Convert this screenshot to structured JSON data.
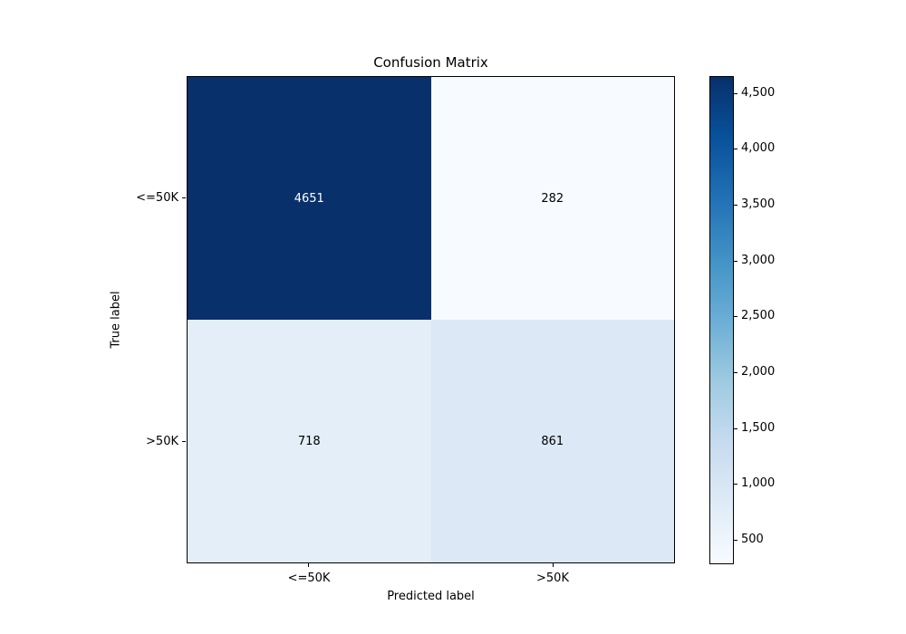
{
  "figure": {
    "title": "Confusion Matrix",
    "xlabel": "Predicted label",
    "ylabel": "True label"
  },
  "chart_data": {
    "type": "heatmap",
    "title": "Confusion Matrix",
    "xlabel": "Predicted label",
    "ylabel": "True label",
    "x_categories": [
      "<=50K",
      ">50K"
    ],
    "y_categories": [
      "<=50K",
      ">50K"
    ],
    "matrix": [
      [
        4651,
        282
      ],
      [
        718,
        861
      ]
    ],
    "vmin": 282,
    "vmax": 4651,
    "colormap": "Blues",
    "legend_position": "colorbar-right",
    "grid": false,
    "cells": [
      {
        "row": "<=50K",
        "col": "<=50K",
        "value": "4651",
        "color": "#08306b",
        "text_color": "#ffffff"
      },
      {
        "row": "<=50K",
        "col": ">50K",
        "value": "282",
        "color": "#f7fbff",
        "text_color": "#000000"
      },
      {
        "row": ">50K",
        "col": "<=50K",
        "value": "718",
        "color": "#e3eef8",
        "text_color": "#000000"
      },
      {
        "row": ">50K",
        "col": ">50K",
        "value": "861",
        "color": "#dce8f5",
        "text_color": "#000000"
      }
    ],
    "colorbar": {
      "tick_labels": [
        "4,500",
        "4,000",
        "3,500",
        "3,000",
        "2,500",
        "2,000",
        "1,500",
        "1,000",
        "500"
      ],
      "tick_values": [
        4500,
        4000,
        3500,
        3000,
        2500,
        2000,
        1500,
        1000,
        500
      ],
      "gradient": [
        "#f7fbff",
        "#deebf7",
        "#c6dbef",
        "#9ecae1",
        "#6baed6",
        "#4292c6",
        "#2171b5",
        "#08519c",
        "#08306b"
      ]
    }
  }
}
